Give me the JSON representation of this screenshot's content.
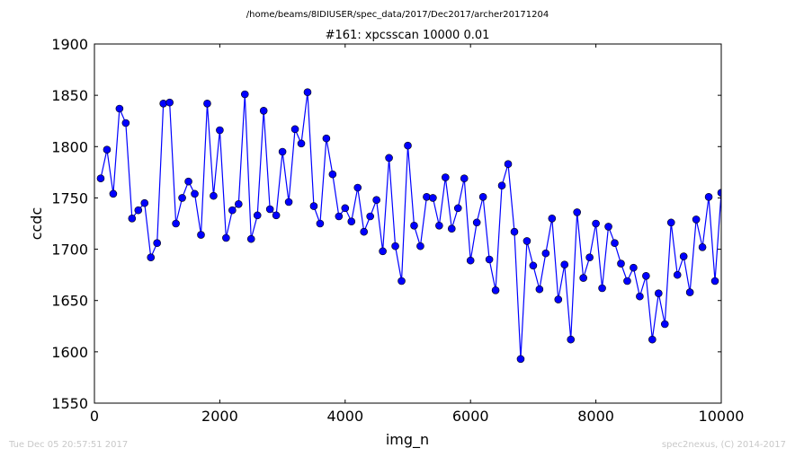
{
  "chart_data": {
    "type": "line",
    "suptitle": "/home/beams/8IDIUSER/spec_data/2017/Dec2017/archer20171204",
    "title": "#161: xpcsscan 10000 0.01",
    "xlabel": "img_n",
    "ylabel": "ccdc",
    "xlim": [
      0,
      10000
    ],
    "ylim": [
      1550,
      1900
    ],
    "xticks": [
      0,
      2000,
      4000,
      6000,
      8000,
      10000
    ],
    "yticks": [
      1550,
      1600,
      1650,
      1700,
      1750,
      1800,
      1850,
      1900
    ],
    "line_color": "#0000ff",
    "marker_color": "#0000ff",
    "grid": false,
    "series": [
      {
        "x": [
          100,
          200,
          300,
          400,
          500,
          600,
          700,
          800,
          900,
          1000,
          1100,
          1200,
          1300,
          1400,
          1500,
          1600,
          1700,
          1800,
          1900,
          2000,
          2100,
          2200,
          2300,
          2400,
          2500,
          2600,
          2700,
          2800,
          2900,
          3000,
          3100,
          3200,
          3300,
          3400,
          3500,
          3600,
          3700,
          3800,
          3900,
          4000,
          4100,
          4200,
          4300,
          4400,
          4500,
          4600,
          4700,
          4800,
          4900,
          5000,
          5100,
          5200,
          5300,
          5400,
          5500,
          5600,
          5700,
          5800,
          5900,
          6000,
          6100,
          6200,
          6300,
          6400,
          6500,
          6600,
          6700,
          6800,
          6900,
          7000,
          7100,
          7200,
          7300,
          7400,
          7500,
          7600,
          7700,
          7800,
          7900,
          8000,
          8100,
          8200,
          8300,
          8400,
          8500,
          8600,
          8700,
          8800,
          8900,
          9000,
          9100,
          9200,
          9300,
          9400,
          9500,
          9600,
          9700,
          9800,
          9900,
          10000
        ],
        "values": [
          1769,
          1797,
          1754,
          1837,
          1823,
          1730,
          1738,
          1745,
          1692,
          1706,
          1842,
          1843,
          1725,
          1750,
          1766,
          1754,
          1714,
          1842,
          1752,
          1816,
          1711,
          1738,
          1744,
          1851,
          1710,
          1733,
          1835,
          1739,
          1733,
          1795,
          1746,
          1817,
          1803,
          1853,
          1742,
          1725,
          1808,
          1773,
          1732,
          1740,
          1727,
          1760,
          1717,
          1732,
          1748,
          1698,
          1789,
          1703,
          1669,
          1801,
          1723,
          1703,
          1751,
          1750,
          1723,
          1770,
          1720,
          1740,
          1769,
          1689,
          1726,
          1751,
          1690,
          1660,
          1762,
          1783,
          1717,
          1593,
          1708,
          1684,
          1661,
          1696,
          1730,
          1651,
          1685,
          1612,
          1736,
          1672,
          1692,
          1725,
          1662,
          1722,
          1706,
          1686,
          1669,
          1682,
          1654,
          1674,
          1612,
          1657,
          1627,
          1726,
          1675,
          1693,
          1658,
          1729,
          1702,
          1751,
          1669,
          1755
        ]
      }
    ]
  },
  "footer": {
    "timestamp": "Tue Dec 05 20:57:51 2017",
    "credit": "spec2nexus, (C) 2014-2017"
  }
}
